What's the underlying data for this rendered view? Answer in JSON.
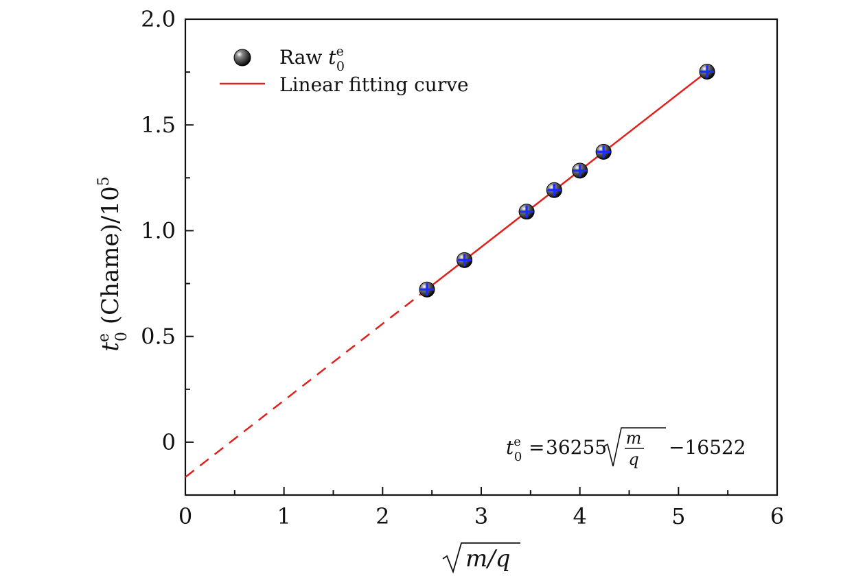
{
  "chart_data": {
    "type": "scatter",
    "title": "",
    "xlabel": "√m/q",
    "ylabel": "t0e (Chame)/10^5",
    "ylabel_parts": {
      "var": "t",
      "sub": "0",
      "sup": "e",
      "rest": " (Chame)/10",
      "exp": "5"
    },
    "xlabel_parts": {
      "radicand": "m/q"
    },
    "xlim": [
      0,
      6
    ],
    "ylim": [
      -0.25,
      2.0
    ],
    "x_ticks": [
      0,
      1,
      2,
      3,
      4,
      5,
      6
    ],
    "x_tick_labels": [
      "0",
      "1",
      "2",
      "3",
      "4",
      "5",
      "6"
    ],
    "y_ticks": [
      0,
      0.5,
      1.0,
      1.5,
      2.0
    ],
    "y_tick_labels": [
      "0",
      "0.5",
      "1.0",
      "1.5",
      "2.0"
    ],
    "grid": false,
    "legend_position": "top-left",
    "series": [
      {
        "name": "Raw t0e",
        "legend_parts": {
          "prefix": "Raw ",
          "var": "t",
          "sub": "0",
          "sup": "e"
        },
        "kind": "scatter",
        "marker_color": "#000000",
        "errorbar_color": "#1a2cff",
        "x": [
          2.45,
          2.83,
          3.46,
          3.74,
          4.0,
          4.24,
          5.29
        ],
        "y": [
          0.722,
          0.861,
          1.09,
          1.192,
          1.284,
          1.373,
          1.752
        ]
      },
      {
        "name": "Linear fitting curve",
        "kind": "line",
        "color": "#e0201b",
        "slope": 0.36255,
        "intercept": -0.16522,
        "solid_x_range": [
          2.45,
          5.29
        ],
        "dashed_x_range": [
          0,
          2.45
        ]
      }
    ],
    "annotation": {
      "var": "t",
      "sub": "0",
      "sup": "e",
      "eq": "=",
      "coef": "36255",
      "num": "m",
      "den": "q",
      "tail": "−16522"
    }
  }
}
